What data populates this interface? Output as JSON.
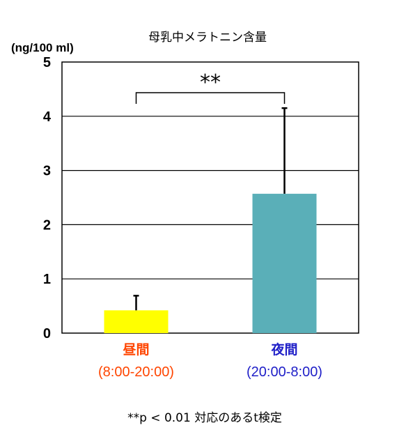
{
  "chart_data": {
    "type": "bar",
    "title": "母乳中メラトニン含量",
    "ylabel": "(ng/100 ml)",
    "ylim": [
      0,
      5
    ],
    "yticks": [
      "0",
      "1",
      "2",
      "3",
      "4",
      "5"
    ],
    "categories": [
      {
        "name": "昼間",
        "range": "(8:00-20:00)"
      },
      {
        "name": "夜間",
        "range": "(20:00-8:00)"
      }
    ],
    "values": [
      0.42,
      2.57
    ],
    "errors": [
      0.27,
      1.58
    ],
    "bar_colors": [
      "#ffff00",
      "#5aafb8"
    ],
    "label_colors": [
      "#ff4500",
      "#2020c8"
    ],
    "grid": true,
    "significance": "**",
    "footnote": "**p < 0.01 対応のあるt検定"
  }
}
